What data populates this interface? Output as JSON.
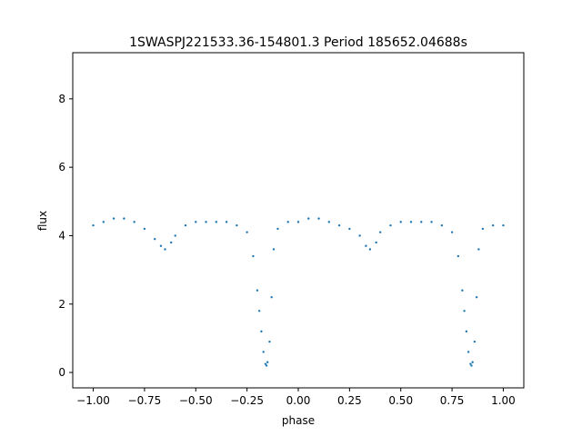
{
  "chart_data": {
    "type": "scatter",
    "title": "1SWASPJ221533.36-154801.3 Period 185652.04688s",
    "xlabel": "phase",
    "ylabel": "flux",
    "xlim": [
      -1.1,
      1.1
    ],
    "ylim": [
      -0.45,
      9.35
    ],
    "x_ticks": [
      -1.0,
      -0.75,
      -0.5,
      -0.25,
      0.0,
      0.25,
      0.5,
      0.75,
      1.0
    ],
    "x_tick_labels": [
      "−1.00",
      "−0.75",
      "−0.50",
      "−0.25",
      "0.00",
      "0.25",
      "0.50",
      "0.75",
      "1.00"
    ],
    "y_ticks": [
      0,
      2,
      4,
      6,
      8
    ],
    "y_tick_labels": [
      "0",
      "2",
      "4",
      "6",
      "8"
    ],
    "grid": false,
    "point_color": "#1f77b4",
    "series": [
      {
        "x": [
          -1.0,
          -0.95,
          -0.9,
          -0.85,
          -0.8,
          -0.75,
          -0.7,
          -0.67,
          -0.65,
          -0.62,
          -0.6,
          -0.55,
          -0.5,
          -0.45,
          -0.4,
          -0.35,
          -0.3,
          -0.25,
          -0.22,
          -0.2,
          -0.19,
          -0.18,
          -0.17,
          -0.16,
          -0.155,
          -0.15,
          -0.14,
          -0.13,
          -0.12,
          -0.1,
          -0.05,
          0.0,
          0.05,
          0.1,
          0.15,
          0.2,
          0.25,
          0.3,
          0.33,
          0.35,
          0.38,
          0.4,
          0.45,
          0.5,
          0.55,
          0.6,
          0.65,
          0.7,
          0.75,
          0.78,
          0.8,
          0.81,
          0.82,
          0.83,
          0.84,
          0.845,
          0.85,
          0.86,
          0.87,
          0.88,
          0.9,
          0.95,
          1.0
        ],
        "y": [
          4.3,
          4.4,
          4.5,
          4.5,
          4.4,
          4.2,
          3.9,
          3.7,
          3.6,
          3.8,
          4.0,
          4.3,
          4.4,
          4.4,
          4.4,
          4.4,
          4.3,
          4.1,
          3.4,
          2.4,
          1.8,
          1.2,
          0.6,
          0.25,
          0.2,
          0.3,
          0.9,
          2.2,
          3.6,
          4.2,
          4.4,
          4.4,
          4.5,
          4.5,
          4.4,
          4.3,
          4.2,
          4.0,
          3.7,
          3.6,
          3.8,
          4.1,
          4.3,
          4.4,
          4.4,
          4.4,
          4.4,
          4.3,
          4.1,
          3.4,
          2.4,
          1.8,
          1.2,
          0.6,
          0.25,
          0.2,
          0.3,
          0.9,
          2.2,
          3.6,
          4.2,
          4.3,
          4.3
        ]
      }
    ]
  }
}
